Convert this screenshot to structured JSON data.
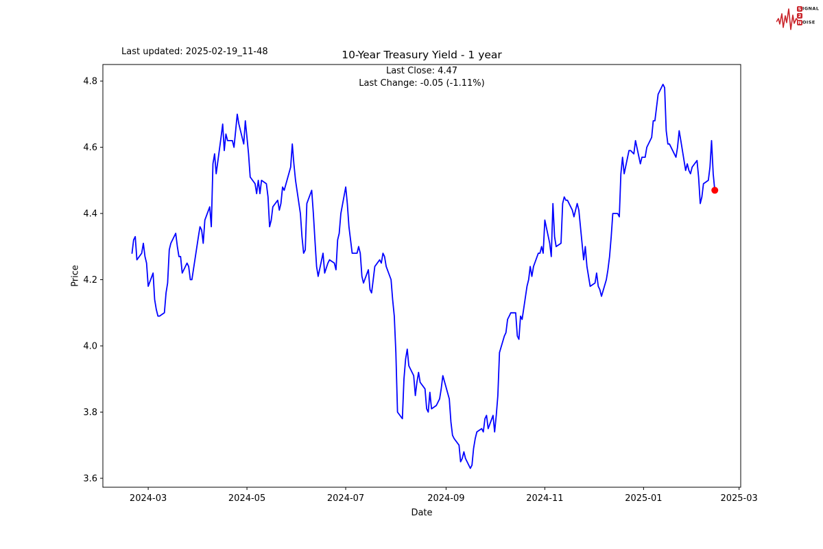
{
  "logo": {
    "word1_initial": "S",
    "word1_rest": "IGNAL",
    "word2_initial": "2",
    "word3_initial": "N",
    "word3_rest": "OISE"
  },
  "chart_data": {
    "type": "line",
    "title": "10-Year Treasury Yield - 1 year",
    "last_updated": "Last updated: 2025-02-19_11-48",
    "subtitle_lines": [
      "Last Close: 4.47",
      "Last Change: -0.05 (-1.11%)"
    ],
    "xlabel": "Date",
    "ylabel": "Price",
    "line_color": "#0000ff",
    "marker": {
      "date": "2025-02-14",
      "value": 4.47,
      "color": "#ff0000"
    },
    "x_axis": {
      "min": "2024-02-02",
      "max": "2025-03-02",
      "ticks": [
        {
          "date": "2024-03-01",
          "label": "2024-03"
        },
        {
          "date": "2024-05-01",
          "label": "2024-05"
        },
        {
          "date": "2024-07-01",
          "label": "2024-07"
        },
        {
          "date": "2024-09-01",
          "label": "2024-09"
        },
        {
          "date": "2024-11-01",
          "label": "2024-11"
        },
        {
          "date": "2025-01-01",
          "label": "2025-01"
        },
        {
          "date": "2025-03-01",
          "label": "2025-03"
        }
      ]
    },
    "y_axis": {
      "min": 3.573,
      "max": 4.85,
      "ticks": [
        3.6,
        3.8,
        4.0,
        4.2,
        4.4,
        4.6,
        4.8
      ]
    },
    "points": [
      [
        "2024-02-20",
        4.28
      ],
      [
        "2024-02-21",
        4.32
      ],
      [
        "2024-02-22",
        4.33
      ],
      [
        "2024-02-23",
        4.26
      ],
      [
        "2024-02-26",
        4.28
      ],
      [
        "2024-02-27",
        4.31
      ],
      [
        "2024-02-28",
        4.27
      ],
      [
        "2024-02-29",
        4.25
      ],
      [
        "2024-03-01",
        4.18
      ],
      [
        "2024-03-04",
        4.22
      ],
      [
        "2024-03-05",
        4.14
      ],
      [
        "2024-03-06",
        4.11
      ],
      [
        "2024-03-07",
        4.09
      ],
      [
        "2024-03-08",
        4.09
      ],
      [
        "2024-03-11",
        4.1
      ],
      [
        "2024-03-12",
        4.16
      ],
      [
        "2024-03-13",
        4.19
      ],
      [
        "2024-03-14",
        4.29
      ],
      [
        "2024-03-15",
        4.31
      ],
      [
        "2024-03-18",
        4.34
      ],
      [
        "2024-03-19",
        4.3
      ],
      [
        "2024-03-20",
        4.27
      ],
      [
        "2024-03-21",
        4.27
      ],
      [
        "2024-03-22",
        4.22
      ],
      [
        "2024-03-25",
        4.25
      ],
      [
        "2024-03-26",
        4.24
      ],
      [
        "2024-03-27",
        4.2
      ],
      [
        "2024-03-28",
        4.2
      ],
      [
        "2024-04-01",
        4.33
      ],
      [
        "2024-04-02",
        4.36
      ],
      [
        "2024-04-03",
        4.35
      ],
      [
        "2024-04-04",
        4.31
      ],
      [
        "2024-04-05",
        4.38
      ],
      [
        "2024-04-08",
        4.42
      ],
      [
        "2024-04-09",
        4.36
      ],
      [
        "2024-04-10",
        4.55
      ],
      [
        "2024-04-11",
        4.58
      ],
      [
        "2024-04-12",
        4.52
      ],
      [
        "2024-04-15",
        4.63
      ],
      [
        "2024-04-16",
        4.67
      ],
      [
        "2024-04-17",
        4.59
      ],
      [
        "2024-04-18",
        4.64
      ],
      [
        "2024-04-19",
        4.62
      ],
      [
        "2024-04-22",
        4.62
      ],
      [
        "2024-04-23",
        4.6
      ],
      [
        "2024-04-24",
        4.65
      ],
      [
        "2024-04-25",
        4.7
      ],
      [
        "2024-04-26",
        4.67
      ],
      [
        "2024-04-29",
        4.61
      ],
      [
        "2024-04-30",
        4.68
      ],
      [
        "2024-05-01",
        4.63
      ],
      [
        "2024-05-02",
        4.58
      ],
      [
        "2024-05-03",
        4.51
      ],
      [
        "2024-05-06",
        4.49
      ],
      [
        "2024-05-07",
        4.46
      ],
      [
        "2024-05-08",
        4.5
      ],
      [
        "2024-05-09",
        4.46
      ],
      [
        "2024-05-10",
        4.5
      ],
      [
        "2024-05-13",
        4.49
      ],
      [
        "2024-05-14",
        4.45
      ],
      [
        "2024-05-15",
        4.36
      ],
      [
        "2024-05-16",
        4.38
      ],
      [
        "2024-05-17",
        4.42
      ],
      [
        "2024-05-20",
        4.44
      ],
      [
        "2024-05-21",
        4.41
      ],
      [
        "2024-05-22",
        4.43
      ],
      [
        "2024-05-23",
        4.48
      ],
      [
        "2024-05-24",
        4.47
      ],
      [
        "2024-05-28",
        4.54
      ],
      [
        "2024-05-29",
        4.61
      ],
      [
        "2024-05-30",
        4.55
      ],
      [
        "2024-05-31",
        4.5
      ],
      [
        "2024-06-03",
        4.4
      ],
      [
        "2024-06-04",
        4.33
      ],
      [
        "2024-06-05",
        4.28
      ],
      [
        "2024-06-06",
        4.29
      ],
      [
        "2024-06-07",
        4.43
      ],
      [
        "2024-06-10",
        4.47
      ],
      [
        "2024-06-11",
        4.4
      ],
      [
        "2024-06-12",
        4.32
      ],
      [
        "2024-06-13",
        4.24
      ],
      [
        "2024-06-14",
        4.21
      ],
      [
        "2024-06-17",
        4.28
      ],
      [
        "2024-06-18",
        4.22
      ],
      [
        "2024-06-20",
        4.25
      ],
      [
        "2024-06-21",
        4.26
      ],
      [
        "2024-06-24",
        4.25
      ],
      [
        "2024-06-25",
        4.23
      ],
      [
        "2024-06-26",
        4.32
      ],
      [
        "2024-06-27",
        4.34
      ],
      [
        "2024-06-28",
        4.4
      ],
      [
        "2024-07-01",
        4.48
      ],
      [
        "2024-07-02",
        4.43
      ],
      [
        "2024-07-03",
        4.36
      ],
      [
        "2024-07-05",
        4.28
      ],
      [
        "2024-07-08",
        4.28
      ],
      [
        "2024-07-09",
        4.3
      ],
      [
        "2024-07-10",
        4.28
      ],
      [
        "2024-07-11",
        4.21
      ],
      [
        "2024-07-12",
        4.19
      ],
      [
        "2024-07-15",
        4.23
      ],
      [
        "2024-07-16",
        4.17
      ],
      [
        "2024-07-17",
        4.16
      ],
      [
        "2024-07-18",
        4.2
      ],
      [
        "2024-07-19",
        4.24
      ],
      [
        "2024-07-22",
        4.26
      ],
      [
        "2024-07-23",
        4.25
      ],
      [
        "2024-07-24",
        4.28
      ],
      [
        "2024-07-25",
        4.27
      ],
      [
        "2024-07-26",
        4.24
      ],
      [
        "2024-07-29",
        4.2
      ],
      [
        "2024-07-30",
        4.14
      ],
      [
        "2024-07-31",
        4.09
      ],
      [
        "2024-08-01",
        3.98
      ],
      [
        "2024-08-02",
        3.8
      ],
      [
        "2024-08-05",
        3.78
      ],
      [
        "2024-08-06",
        3.9
      ],
      [
        "2024-08-07",
        3.96
      ],
      [
        "2024-08-08",
        3.99
      ],
      [
        "2024-08-09",
        3.94
      ],
      [
        "2024-08-12",
        3.91
      ],
      [
        "2024-08-13",
        3.85
      ],
      [
        "2024-08-14",
        3.89
      ],
      [
        "2024-08-15",
        3.92
      ],
      [
        "2024-08-16",
        3.89
      ],
      [
        "2024-08-19",
        3.87
      ],
      [
        "2024-08-20",
        3.81
      ],
      [
        "2024-08-21",
        3.8
      ],
      [
        "2024-08-22",
        3.86
      ],
      [
        "2024-08-23",
        3.81
      ],
      [
        "2024-08-26",
        3.82
      ],
      [
        "2024-08-27",
        3.83
      ],
      [
        "2024-08-28",
        3.84
      ],
      [
        "2024-08-29",
        3.87
      ],
      [
        "2024-08-30",
        3.91
      ],
      [
        "2024-09-03",
        3.84
      ],
      [
        "2024-09-04",
        3.77
      ],
      [
        "2024-09-05",
        3.73
      ],
      [
        "2024-09-06",
        3.72
      ],
      [
        "2024-09-09",
        3.7
      ],
      [
        "2024-09-10",
        3.65
      ],
      [
        "2024-09-11",
        3.66
      ],
      [
        "2024-09-12",
        3.68
      ],
      [
        "2024-09-13",
        3.66
      ],
      [
        "2024-09-16",
        3.63
      ],
      [
        "2024-09-17",
        3.64
      ],
      [
        "2024-09-18",
        3.69
      ],
      [
        "2024-09-19",
        3.72
      ],
      [
        "2024-09-20",
        3.74
      ],
      [
        "2024-09-23",
        3.75
      ],
      [
        "2024-09-24",
        3.74
      ],
      [
        "2024-09-25",
        3.78
      ],
      [
        "2024-09-26",
        3.79
      ],
      [
        "2024-09-27",
        3.75
      ],
      [
        "2024-09-30",
        3.79
      ],
      [
        "2024-10-01",
        3.74
      ],
      [
        "2024-10-02",
        3.79
      ],
      [
        "2024-10-03",
        3.85
      ],
      [
        "2024-10-04",
        3.98
      ],
      [
        "2024-10-07",
        4.03
      ],
      [
        "2024-10-08",
        4.04
      ],
      [
        "2024-10-09",
        4.08
      ],
      [
        "2024-10-10",
        4.09
      ],
      [
        "2024-10-11",
        4.1
      ],
      [
        "2024-10-14",
        4.1
      ],
      [
        "2024-10-15",
        4.03
      ],
      [
        "2024-10-16",
        4.02
      ],
      [
        "2024-10-17",
        4.09
      ],
      [
        "2024-10-18",
        4.08
      ],
      [
        "2024-10-21",
        4.18
      ],
      [
        "2024-10-22",
        4.2
      ],
      [
        "2024-10-23",
        4.24
      ],
      [
        "2024-10-24",
        4.21
      ],
      [
        "2024-10-25",
        4.24
      ],
      [
        "2024-10-28",
        4.28
      ],
      [
        "2024-10-29",
        4.28
      ],
      [
        "2024-10-30",
        4.3
      ],
      [
        "2024-10-31",
        4.28
      ],
      [
        "2024-11-01",
        4.38
      ],
      [
        "2024-11-04",
        4.31
      ],
      [
        "2024-11-05",
        4.27
      ],
      [
        "2024-11-06",
        4.43
      ],
      [
        "2024-11-07",
        4.33
      ],
      [
        "2024-11-08",
        4.3
      ],
      [
        "2024-11-11",
        4.31
      ],
      [
        "2024-11-12",
        4.43
      ],
      [
        "2024-11-13",
        4.45
      ],
      [
        "2024-11-14",
        4.44
      ],
      [
        "2024-11-15",
        4.44
      ],
      [
        "2024-11-18",
        4.41
      ],
      [
        "2024-11-19",
        4.39
      ],
      [
        "2024-11-20",
        4.41
      ],
      [
        "2024-11-21",
        4.43
      ],
      [
        "2024-11-22",
        4.41
      ],
      [
        "2024-11-25",
        4.26
      ],
      [
        "2024-11-26",
        4.3
      ],
      [
        "2024-11-27",
        4.24
      ],
      [
        "2024-11-29",
        4.18
      ],
      [
        "2024-12-02",
        4.19
      ],
      [
        "2024-12-03",
        4.22
      ],
      [
        "2024-12-04",
        4.18
      ],
      [
        "2024-12-05",
        4.17
      ],
      [
        "2024-12-06",
        4.15
      ],
      [
        "2024-12-09",
        4.2
      ],
      [
        "2024-12-10",
        4.23
      ],
      [
        "2024-12-11",
        4.27
      ],
      [
        "2024-12-12",
        4.33
      ],
      [
        "2024-12-13",
        4.4
      ],
      [
        "2024-12-16",
        4.4
      ],
      [
        "2024-12-17",
        4.39
      ],
      [
        "2024-12-18",
        4.52
      ],
      [
        "2024-12-19",
        4.57
      ],
      [
        "2024-12-20",
        4.52
      ],
      [
        "2024-12-23",
        4.59
      ],
      [
        "2024-12-24",
        4.59
      ],
      [
        "2024-12-26",
        4.58
      ],
      [
        "2024-12-27",
        4.62
      ],
      [
        "2024-12-30",
        4.55
      ],
      [
        "2024-12-31",
        4.57
      ],
      [
        "2025-01-02",
        4.57
      ],
      [
        "2025-01-03",
        4.6
      ],
      [
        "2025-01-06",
        4.63
      ],
      [
        "2025-01-07",
        4.68
      ],
      [
        "2025-01-08",
        4.68
      ],
      [
        "2025-01-10",
        4.76
      ],
      [
        "2025-01-13",
        4.79
      ],
      [
        "2025-01-14",
        4.78
      ],
      [
        "2025-01-15",
        4.65
      ],
      [
        "2025-01-16",
        4.61
      ],
      [
        "2025-01-17",
        4.61
      ],
      [
        "2025-01-21",
        4.57
      ],
      [
        "2025-01-22",
        4.6
      ],
      [
        "2025-01-23",
        4.65
      ],
      [
        "2025-01-24",
        4.62
      ],
      [
        "2025-01-27",
        4.53
      ],
      [
        "2025-01-28",
        4.55
      ],
      [
        "2025-01-29",
        4.53
      ],
      [
        "2025-01-30",
        4.52
      ],
      [
        "2025-01-31",
        4.54
      ],
      [
        "2025-02-03",
        4.56
      ],
      [
        "2025-02-04",
        4.51
      ],
      [
        "2025-02-05",
        4.43
      ],
      [
        "2025-02-06",
        4.45
      ],
      [
        "2025-02-07",
        4.49
      ],
      [
        "2025-02-10",
        4.5
      ],
      [
        "2025-02-11",
        4.54
      ],
      [
        "2025-02-12",
        4.62
      ],
      [
        "2025-02-13",
        4.52
      ],
      [
        "2025-02-14",
        4.47
      ]
    ]
  }
}
